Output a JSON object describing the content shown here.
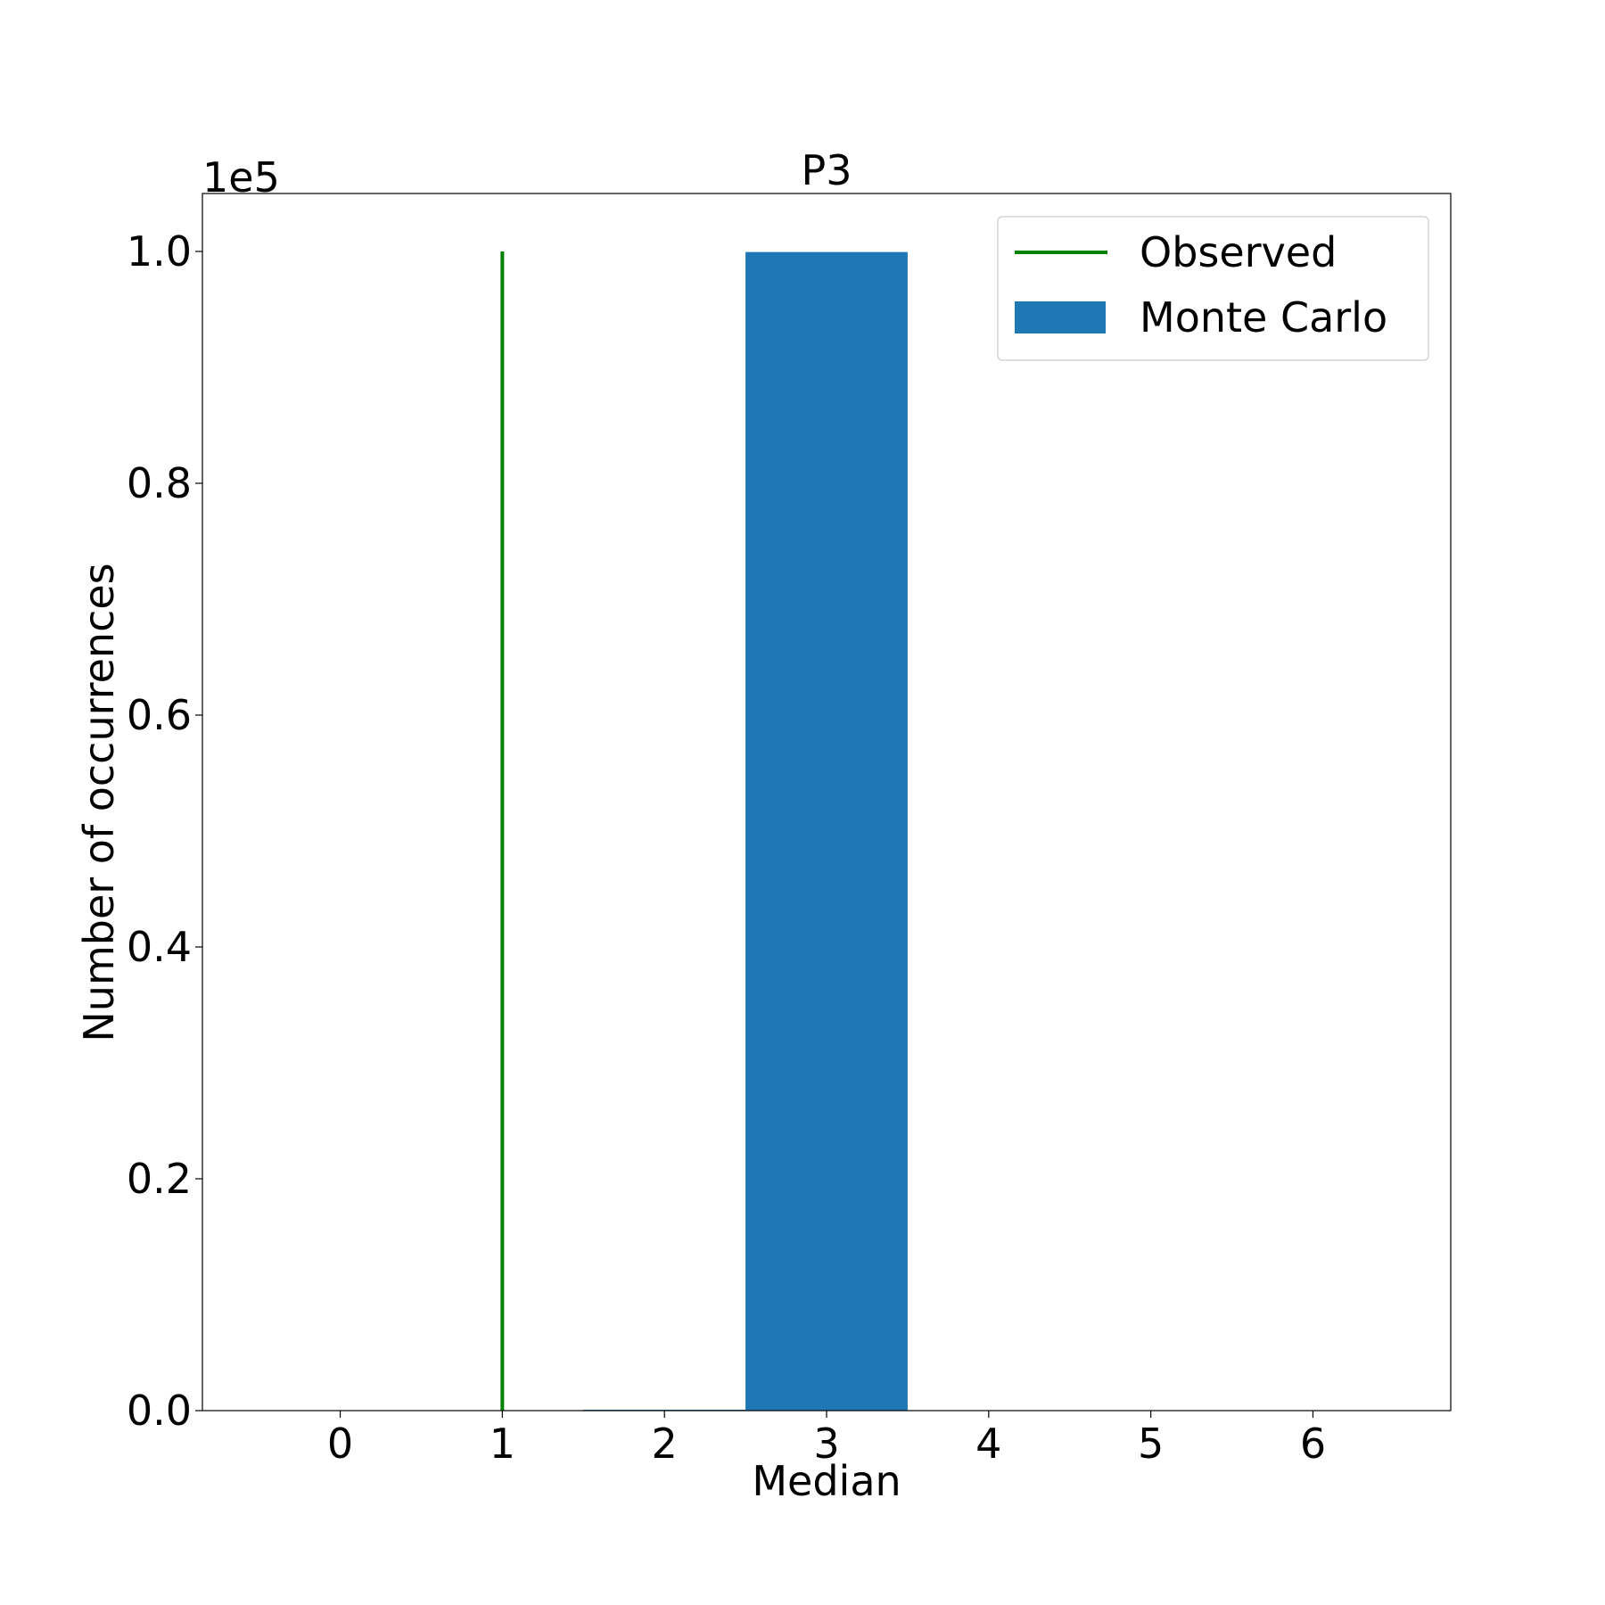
{
  "chart_data": {
    "type": "bar",
    "title": "P3",
    "xlabel": "Median",
    "ylabel": "Number of occurrences",
    "y_offset_label": "1e5",
    "y_scale_factor": 100000,
    "xlim": [
      -0.85,
      6.85
    ],
    "ylim": [
      0,
      105000
    ],
    "x_ticks": [
      0,
      1,
      2,
      3,
      4,
      5,
      6
    ],
    "x_tick_labels": [
      "0",
      "1",
      "2",
      "3",
      "4",
      "5",
      "6"
    ],
    "y_ticks": [
      0,
      20000,
      40000,
      60000,
      80000,
      100000
    ],
    "y_tick_labels": [
      "0.0",
      "0.2",
      "0.4",
      "0.6",
      "0.8",
      "1.0"
    ],
    "grid": false,
    "legend_position": "top-right",
    "series": [
      {
        "name": "Monte Carlo",
        "kind": "histogram",
        "color": "#1f77b4",
        "bin_width": 1,
        "bins": [
          {
            "x": 2,
            "value": 50
          },
          {
            "x": 3,
            "value": 99950
          }
        ]
      },
      {
        "name": "Observed",
        "kind": "vline",
        "color": "#008000",
        "x": 1,
        "ymin": 0,
        "ymax": 100000
      }
    ]
  }
}
